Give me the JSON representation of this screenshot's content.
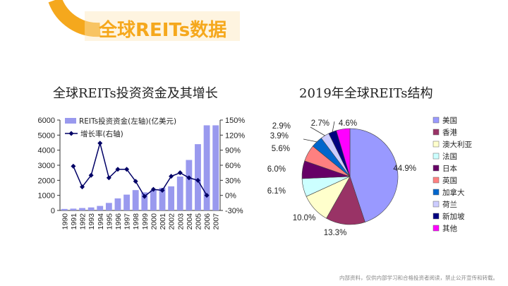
{
  "page": {
    "title": "全球REITs数据",
    "footer_note": "内部资料，仅供内部学习和合格投资者阅读，禁止公开宣传和转载。",
    "colors": {
      "accent": "#f5a81d",
      "bar": "#9999ee",
      "line": "#000066"
    }
  },
  "chart_data": [
    {
      "type": "bar",
      "title": "全球REITs投资资金及其增长",
      "categories": [
        "1990",
        "1991",
        "1992",
        "1993",
        "1994",
        "1995",
        "1996",
        "1997",
        "1998",
        "1999",
        "2000",
        "2001",
        "2002",
        "2003",
        "2004",
        "2005",
        "2006",
        "2007"
      ],
      "series": [
        {
          "name": "REITs投资资金(左轴)(亿美元)",
          "type": "bar",
          "axis": "left",
          "values": [
            100,
            120,
            160,
            200,
            300,
            500,
            800,
            1050,
            1350,
            1200,
            1350,
            1500,
            1600,
            2250,
            3350,
            4400,
            5650,
            5650
          ]
        },
        {
          "name": "增长率(右轴)",
          "type": "line",
          "axis": "right",
          "values": [
            null,
            58,
            17,
            40,
            104,
            35,
            52,
            52,
            28,
            -2,
            12,
            10,
            38,
            45,
            35,
            30,
            0,
            null
          ]
        }
      ],
      "y_left": {
        "min": 0,
        "max": 6000,
        "ticks": [
          "0",
          "1000",
          "2000",
          "3000",
          "4000",
          "5000",
          "6000"
        ]
      },
      "y_right": {
        "min": -30,
        "max": 150,
        "ticks": [
          "-30%",
          "0%",
          "30%",
          "60%",
          "90%",
          "120%",
          "150%"
        ]
      },
      "legend_position": "top-left",
      "grid": false
    },
    {
      "type": "pie",
      "title": "2019年全球REITs结构",
      "slices": [
        {
          "label": "美国",
          "value": 44.9,
          "display": "44.9%",
          "color": "#9999ff"
        },
        {
          "label": "香港",
          "value": 13.3,
          "display": "13.3%",
          "color": "#993366"
        },
        {
          "label": "澳大利亚",
          "value": 10.0,
          "display": "10.0%",
          "color": "#ffffcc"
        },
        {
          "label": "法国",
          "value": 6.1,
          "display": "6.1%",
          "color": "#ccffff"
        },
        {
          "label": "日本",
          "value": 6.0,
          "display": "6.0%",
          "color": "#660066"
        },
        {
          "label": "英国",
          "value": 5.6,
          "display": "5.6%",
          "color": "#ff8080"
        },
        {
          "label": "加拿大",
          "value": 3.9,
          "display": "3.9%",
          "color": "#0066cc"
        },
        {
          "label": "荷兰",
          "value": 2.9,
          "display": "2.9%",
          "color": "#ccccff"
        },
        {
          "label": "新加坡",
          "value": 2.7,
          "display": "2.7%",
          "color": "#000080"
        },
        {
          "label": "其他",
          "value": 4.6,
          "display": "4.6%",
          "color": "#ff00ff"
        }
      ],
      "legend_position": "right"
    }
  ]
}
